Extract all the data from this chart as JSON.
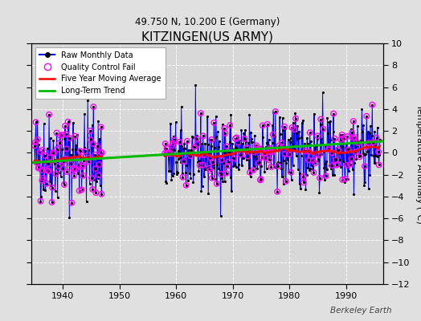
{
  "title": "KITZINGEN(US ARMY)",
  "subtitle": "49.750 N, 10.200 E (Germany)",
  "ylabel": "Temperature Anomaly (°C)",
  "watermark": "Berkeley Earth",
  "xlim": [
    1934.5,
    1996.5
  ],
  "ylim": [
    -12,
    10
  ],
  "yticks": [
    -12,
    -10,
    -8,
    -6,
    -4,
    -2,
    0,
    2,
    4,
    6,
    8,
    10
  ],
  "xticks": [
    1940,
    1950,
    1960,
    1970,
    1980,
    1990
  ],
  "plot_bg": "#d8d8d8",
  "fig_bg": "#e0e0e0",
  "grid_color": "#ffffff",
  "seed_data": 42,
  "seed_qc": 43,
  "period1_start": 1935,
  "period1_end": 1947,
  "period2_start": 1958,
  "period2_end": 1996,
  "p1_base": -0.4,
  "p1_std": 2.1,
  "p1_trend": 0.0,
  "p2_base": -0.5,
  "p2_std": 1.7,
  "p2_trend": 0.028,
  "qc_rate1": 0.55,
  "qc_rate2": 0.3,
  "trend_x": [
    1934.5,
    1996.5
  ],
  "trend_y": [
    -0.9,
    1.05
  ],
  "line_color": "#0000ff",
  "dot_color": "#000000",
  "qc_color": "#ff00ff",
  "ma_color": "#ff0000",
  "trend_color": "#00bb00",
  "line_lw": 0.7,
  "dot_ms": 2.5,
  "qc_ms": 22,
  "qc_lw": 1.0,
  "ma_lw": 1.8,
  "trend_lw": 2.2
}
